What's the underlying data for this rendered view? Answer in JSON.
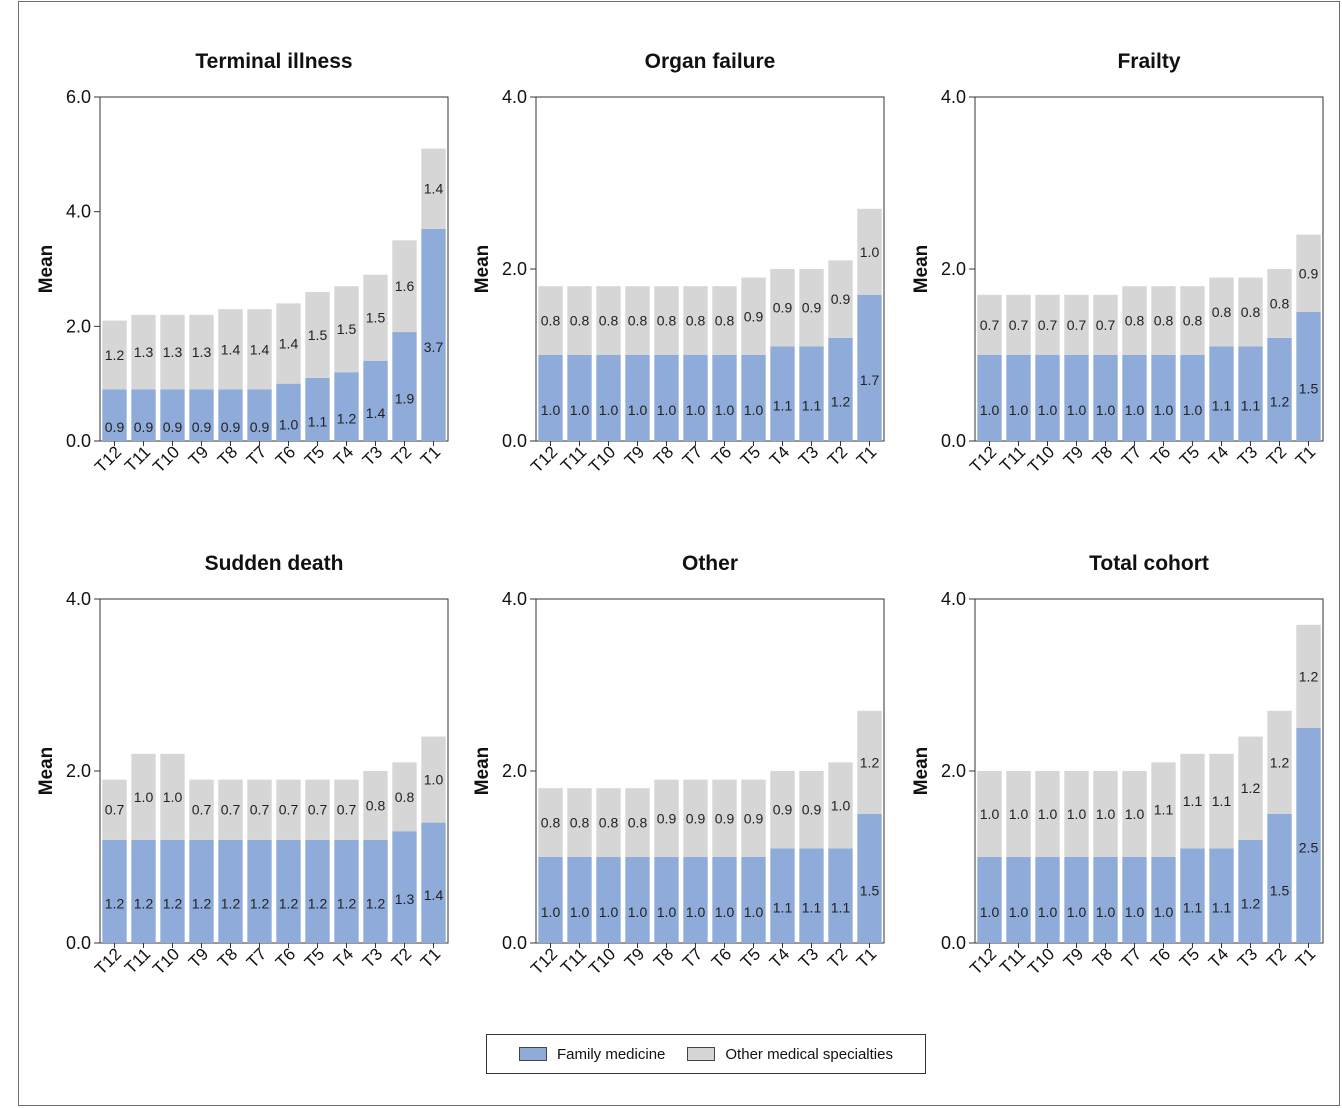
{
  "colors": {
    "family_medicine": "#8eabda",
    "other_specialties": "#d6d6d6",
    "axis": "#111111"
  },
  "legend": [
    {
      "label": "Family medicine",
      "color": "#8eabda"
    },
    {
      "label": "Other medical specialties",
      "color": "#d6d6d6"
    }
  ],
  "chart_data": [
    {
      "type": "bar",
      "stacked": true,
      "title": "Terminal illness",
      "ylabel": "Mean",
      "ylim": [
        0,
        6
      ],
      "yticks": [
        "0.0",
        "2.0",
        "4.0",
        "6.0"
      ],
      "categories": [
        "T12",
        "T11",
        "T10",
        "T9",
        "T8",
        "T7",
        "T6",
        "T5",
        "T4",
        "T3",
        "T2",
        "T1"
      ],
      "series": [
        {
          "name": "Family medicine",
          "values": [
            0.9,
            0.9,
            0.9,
            0.9,
            0.9,
            0.9,
            1.0,
            1.1,
            1.2,
            1.4,
            1.9,
            3.7
          ]
        },
        {
          "name": "Other medical specialties",
          "values": [
            1.2,
            1.3,
            1.3,
            1.3,
            1.4,
            1.4,
            1.4,
            1.5,
            1.5,
            1.5,
            1.6,
            1.4
          ]
        }
      ]
    },
    {
      "type": "bar",
      "stacked": true,
      "title": "Organ failure",
      "ylabel": "Mean",
      "ylim": [
        0,
        4
      ],
      "yticks": [
        "0.0",
        "2.0",
        "4.0"
      ],
      "categories": [
        "T12",
        "T11",
        "T10",
        "T9",
        "T8",
        "T7",
        "T6",
        "T5",
        "T4",
        "T3",
        "T2",
        "T1"
      ],
      "series": [
        {
          "name": "Family medicine",
          "values": [
            1.0,
            1.0,
            1.0,
            1.0,
            1.0,
            1.0,
            1.0,
            1.0,
            1.1,
            1.1,
            1.2,
            1.7
          ]
        },
        {
          "name": "Other medical specialties",
          "values": [
            0.8,
            0.8,
            0.8,
            0.8,
            0.8,
            0.8,
            0.8,
            0.9,
            0.9,
            0.9,
            0.9,
            1.0
          ]
        }
      ]
    },
    {
      "type": "bar",
      "stacked": true,
      "title": "Frailty",
      "ylabel": "Mean",
      "ylim": [
        0,
        4
      ],
      "yticks": [
        "0.0",
        "2.0",
        "4.0"
      ],
      "categories": [
        "T12",
        "T11",
        "T10",
        "T9",
        "T8",
        "T7",
        "T6",
        "T5",
        "T4",
        "T3",
        "T2",
        "T1"
      ],
      "series": [
        {
          "name": "Family medicine",
          "values": [
            1.0,
            1.0,
            1.0,
            1.0,
            1.0,
            1.0,
            1.0,
            1.0,
            1.1,
            1.1,
            1.2,
            1.5
          ]
        },
        {
          "name": "Other medical specialties",
          "values": [
            0.7,
            0.7,
            0.7,
            0.7,
            0.7,
            0.8,
            0.8,
            0.8,
            0.8,
            0.8,
            0.8,
            0.9
          ]
        }
      ]
    },
    {
      "type": "bar",
      "stacked": true,
      "title": "Sudden death",
      "ylabel": "Mean",
      "ylim": [
        0,
        4
      ],
      "yticks": [
        "0.0",
        "2.0",
        "4.0"
      ],
      "categories": [
        "T12",
        "T11",
        "T10",
        "T9",
        "T8",
        "T7",
        "T6",
        "T5",
        "T4",
        "T3",
        "T2",
        "T1"
      ],
      "series": [
        {
          "name": "Family medicine",
          "values": [
            1.2,
            1.2,
            1.2,
            1.2,
            1.2,
            1.2,
            1.2,
            1.2,
            1.2,
            1.2,
            1.3,
            1.4
          ]
        },
        {
          "name": "Other medical specialties",
          "values": [
            0.7,
            1.0,
            1.0,
            0.7,
            0.7,
            0.7,
            0.7,
            0.7,
            0.7,
            0.8,
            0.8,
            1.0
          ]
        }
      ]
    },
    {
      "type": "bar",
      "stacked": true,
      "title": "Other",
      "ylabel": "Mean",
      "ylim": [
        0,
        4
      ],
      "yticks": [
        "0.0",
        "2.0",
        "4.0"
      ],
      "categories": [
        "T12",
        "T11",
        "T10",
        "T9",
        "T8",
        "T7",
        "T6",
        "T5",
        "T4",
        "T3",
        "T2",
        "T1"
      ],
      "series": [
        {
          "name": "Family medicine",
          "values": [
            1.0,
            1.0,
            1.0,
            1.0,
            1.0,
            1.0,
            1.0,
            1.0,
            1.1,
            1.1,
            1.1,
            1.5
          ]
        },
        {
          "name": "Other medical specialties",
          "values": [
            0.8,
            0.8,
            0.8,
            0.8,
            0.9,
            0.9,
            0.9,
            0.9,
            0.9,
            0.9,
            1.0,
            1.2
          ]
        }
      ]
    },
    {
      "type": "bar",
      "stacked": true,
      "title": "Total cohort",
      "ylabel": "Mean",
      "ylim": [
        0,
        4
      ],
      "yticks": [
        "0.0",
        "2.0",
        "4.0"
      ],
      "categories": [
        "T12",
        "T11",
        "T10",
        "T9",
        "T8",
        "T7",
        "T6",
        "T5",
        "T4",
        "T3",
        "T2",
        "T1"
      ],
      "series": [
        {
          "name": "Family medicine",
          "values": [
            1.0,
            1.0,
            1.0,
            1.0,
            1.0,
            1.0,
            1.0,
            1.1,
            1.1,
            1.2,
            1.5,
            2.5
          ]
        },
        {
          "name": "Other medical specialties",
          "values": [
            1.0,
            1.0,
            1.0,
            1.0,
            1.0,
            1.0,
            1.1,
            1.1,
            1.1,
            1.2,
            1.2,
            1.2
          ]
        }
      ]
    }
  ]
}
